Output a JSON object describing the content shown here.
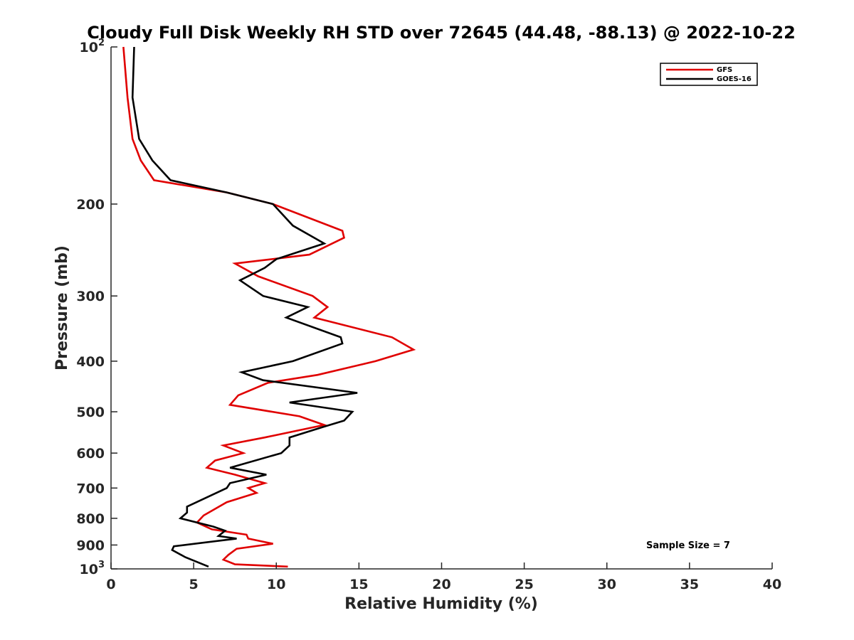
{
  "chart_data": {
    "type": "line",
    "title": "Cloudy Full Disk Weekly RH STD over 72645 (44.48, -88.13) @ 2022-10-22",
    "xlabel": "Relative Humidity (%)",
    "ylabel": "Pressure (mb)",
    "xlim": [
      0,
      40
    ],
    "ylim": [
      100,
      1000
    ],
    "yscale": "log",
    "y_reversed": true,
    "x_ticks": [
      0,
      5,
      10,
      15,
      20,
      25,
      30,
      35,
      40
    ],
    "x_tick_labels": [
      "0",
      "5",
      "10",
      "15",
      "20",
      "25",
      "30",
      "35",
      "40"
    ],
    "y_ticks": [
      100,
      200,
      300,
      400,
      500,
      600,
      700,
      800,
      900,
      1000
    ],
    "y_tick_labels": [
      {
        "text": "10",
        "sup": "2"
      },
      {
        "text": "200",
        "sup": ""
      },
      {
        "text": "300",
        "sup": ""
      },
      {
        "text": "400",
        "sup": ""
      },
      {
        "text": "500",
        "sup": ""
      },
      {
        "text": "600",
        "sup": ""
      },
      {
        "text": "700",
        "sup": ""
      },
      {
        "text": "800",
        "sup": ""
      },
      {
        "text": "900",
        "sup": ""
      },
      {
        "text": "10",
        "sup": "3"
      }
    ],
    "grid": false,
    "legend_position": "top-right",
    "annotation": "Sample Size = 7",
    "series": [
      {
        "name": "GFS",
        "color": "#e00000",
        "points": [
          [
            0.75,
            100
          ],
          [
            1.0,
            125
          ],
          [
            1.3,
            150
          ],
          [
            1.8,
            165
          ],
          [
            2.6,
            180
          ],
          [
            7.0,
            190
          ],
          [
            9.8,
            200
          ],
          [
            14.0,
            225
          ],
          [
            14.1,
            232
          ],
          [
            12.0,
            250
          ],
          [
            7.5,
            260
          ],
          [
            8.9,
            275
          ],
          [
            12.2,
            300
          ],
          [
            13.1,
            315
          ],
          [
            12.3,
            330
          ],
          [
            17.0,
            360
          ],
          [
            18.3,
            380
          ],
          [
            16.0,
            400
          ],
          [
            12.5,
            425
          ],
          [
            9.5,
            440
          ],
          [
            7.7,
            465
          ],
          [
            7.2,
            485
          ],
          [
            11.4,
            510
          ],
          [
            12.9,
            530
          ],
          [
            9.3,
            560
          ],
          [
            6.8,
            580
          ],
          [
            8.0,
            600
          ],
          [
            6.3,
            620
          ],
          [
            5.8,
            640
          ],
          [
            7.5,
            660
          ],
          [
            9.3,
            685
          ],
          [
            8.3,
            700
          ],
          [
            8.8,
            715
          ],
          [
            7.0,
            745
          ],
          [
            5.6,
            790
          ],
          [
            5.2,
            815
          ],
          [
            6.1,
            840
          ],
          [
            8.2,
            860
          ],
          [
            8.3,
            875
          ],
          [
            9.8,
            895
          ],
          [
            7.6,
            915
          ],
          [
            7.1,
            940
          ],
          [
            6.8,
            960
          ],
          [
            7.5,
            980
          ],
          [
            10.7,
            990
          ]
        ]
      },
      {
        "name": "GOES-16",
        "color": "#000000",
        "points": [
          [
            1.4,
            100
          ],
          [
            1.3,
            125
          ],
          [
            1.7,
            150
          ],
          [
            2.5,
            165
          ],
          [
            3.6,
            180
          ],
          [
            7.0,
            190
          ],
          [
            9.8,
            200
          ],
          [
            11.0,
            220
          ],
          [
            12.9,
            238
          ],
          [
            10.0,
            255
          ],
          [
            9.3,
            265
          ],
          [
            7.8,
            280
          ],
          [
            9.2,
            300
          ],
          [
            11.9,
            315
          ],
          [
            10.6,
            330
          ],
          [
            13.9,
            360
          ],
          [
            14.0,
            370
          ],
          [
            11.0,
            400
          ],
          [
            7.9,
            420
          ],
          [
            9.2,
            435
          ],
          [
            14.9,
            460
          ],
          [
            10.8,
            480
          ],
          [
            14.6,
            500
          ],
          [
            14.1,
            520
          ],
          [
            12.8,
            535
          ],
          [
            10.8,
            560
          ],
          [
            10.8,
            580
          ],
          [
            10.3,
            600
          ],
          [
            7.2,
            640
          ],
          [
            9.4,
            660
          ],
          [
            7.2,
            685
          ],
          [
            7.0,
            700
          ],
          [
            4.6,
            760
          ],
          [
            4.6,
            780
          ],
          [
            4.2,
            800
          ],
          [
            6.2,
            830
          ],
          [
            6.9,
            845
          ],
          [
            6.5,
            865
          ],
          [
            7.6,
            875
          ],
          [
            3.8,
            905
          ],
          [
            3.7,
            920
          ],
          [
            4.5,
            950
          ],
          [
            5.9,
            990
          ]
        ]
      }
    ]
  }
}
